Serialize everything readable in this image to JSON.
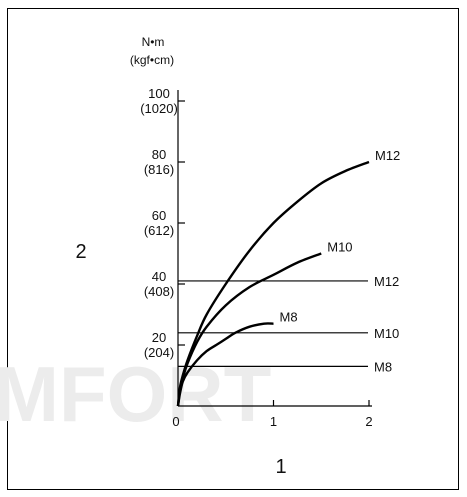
{
  "chart_data": {
    "type": "line",
    "title": "",
    "x_axis": {
      "label": "1",
      "min": 0,
      "max": 2,
      "tick_labels": [
        "0",
        "1",
        "2"
      ]
    },
    "y_axis": {
      "label": "2",
      "unit_line1": "N•m",
      "unit_line2": "(kgf•cm)",
      "min": 0,
      "max": 100,
      "ticks": [
        {
          "value": 20,
          "label": "20",
          "alt": "(204)"
        },
        {
          "value": 40,
          "label": "40",
          "alt": "(408)"
        },
        {
          "value": 60,
          "label": "60",
          "alt": "(612)"
        },
        {
          "value": 80,
          "label": "80",
          "alt": "(816)"
        },
        {
          "value": 100,
          "label": "100",
          "alt": "(1020)"
        }
      ]
    },
    "curves": [
      {
        "name": "M12",
        "x": [
          0,
          0.02,
          0.05,
          0.1,
          0.2,
          0.3,
          0.5,
          0.75,
          1.0,
          1.25,
          1.5,
          1.75,
          2.0
        ],
        "y": [
          0,
          6,
          10,
          15,
          23,
          30,
          40,
          51,
          60,
          67,
          73,
          77,
          80
        ]
      },
      {
        "name": "M10",
        "x": [
          0,
          0.02,
          0.05,
          0.1,
          0.2,
          0.3,
          0.5,
          0.75,
          1.0,
          1.25,
          1.5
        ],
        "y": [
          0,
          5,
          9,
          14,
          21,
          26,
          33,
          39,
          43,
          47,
          50
        ]
      },
      {
        "name": "M8",
        "x": [
          0,
          0.02,
          0.05,
          0.1,
          0.2,
          0.3,
          0.4,
          0.5,
          0.6,
          0.75,
          0.9,
          1.0
        ],
        "y": [
          0,
          4,
          8,
          11,
          15,
          18,
          20,
          22,
          24,
          26,
          27,
          27
        ]
      }
    ],
    "reference_lines": [
      {
        "name": "M12",
        "y": 41
      },
      {
        "name": "M10",
        "y": 24
      },
      {
        "name": "M8",
        "y": 13
      }
    ],
    "grid": false,
    "legend": "none"
  },
  "watermark": "MFORT"
}
